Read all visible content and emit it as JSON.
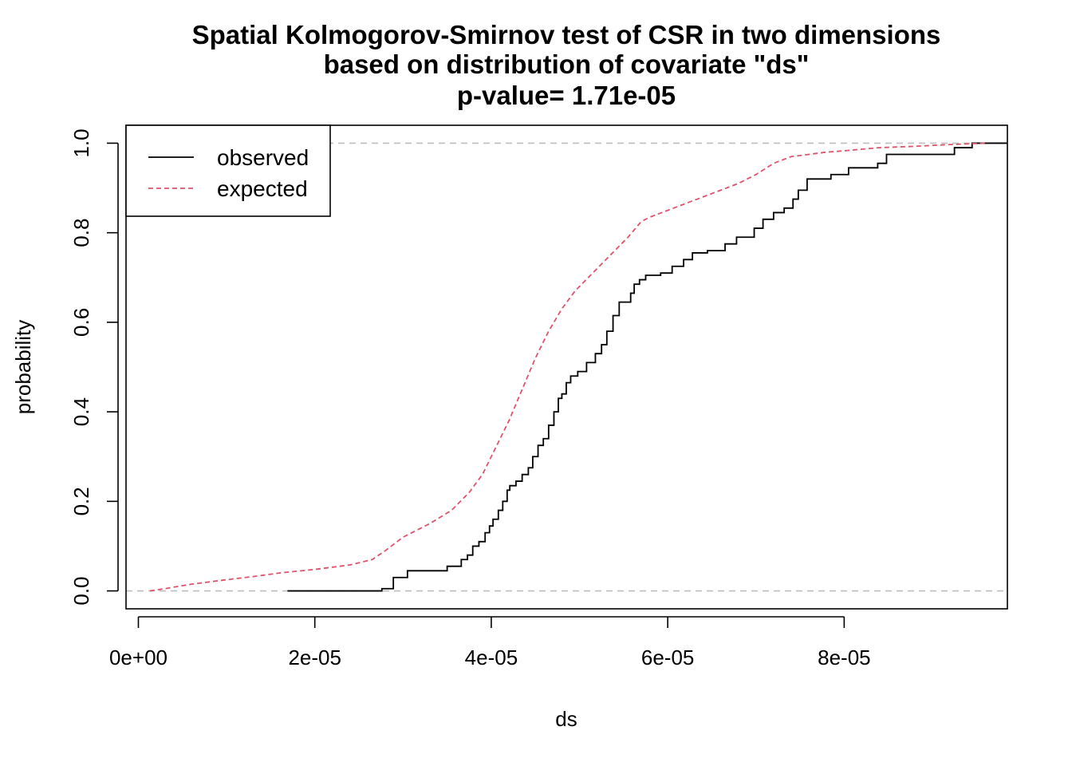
{
  "chart_data": {
    "type": "line",
    "title_lines": [
      "Spatial Kolmogorov-Smirnov test of CSR in two dimensions",
      "based on distribution of covariate \"ds\"",
      "p-value= 1.71e-05"
    ],
    "xlabel": "ds",
    "ylabel": "probability",
    "xlim": [
      -1.4e-06,
      9.85e-05
    ],
    "ylim": [
      -0.04,
      1.04
    ],
    "x_ticks": [
      0,
      2e-05,
      4e-05,
      6e-05,
      8e-05
    ],
    "x_tick_labels": [
      "0e+00",
      "2e-05",
      "4e-05",
      "6e-05",
      "8e-05"
    ],
    "y_ticks": [
      0,
      0.2,
      0.4,
      0.6,
      0.8,
      1.0
    ],
    "y_tick_labels": [
      "0.0",
      "0.2",
      "0.4",
      "0.6",
      "0.8",
      "1.0"
    ],
    "reference_lines": [
      0,
      1
    ],
    "legend": {
      "position": "top-left"
    },
    "series": [
      {
        "name": "observed",
        "style": "step",
        "color": "#000000",
        "x": [
          1.69e-05,
          2.76e-05,
          2.89e-05,
          3.05e-05,
          3.5e-05,
          3.66e-05,
          3.73e-05,
          3.79e-05,
          3.86e-05,
          3.93e-05,
          3.98e-05,
          4.02e-05,
          4.08e-05,
          4.13e-05,
          4.18e-05,
          4.21e-05,
          4.28e-05,
          4.35e-05,
          4.42e-05,
          4.47e-05,
          4.53e-05,
          4.59e-05,
          4.65e-05,
          4.71e-05,
          4.76e-05,
          4.8e-05,
          4.85e-05,
          4.9e-05,
          4.98e-05,
          5.08e-05,
          5.18e-05,
          5.25e-05,
          5.31e-05,
          5.38e-05,
          5.45e-05,
          5.58e-05,
          5.62e-05,
          5.68e-05,
          5.75e-05,
          5.92e-05,
          6.05e-05,
          6.18e-05,
          6.28e-05,
          6.45e-05,
          6.65e-05,
          6.78e-05,
          6.98e-05,
          7.08e-05,
          7.2e-05,
          7.32e-05,
          7.42e-05,
          7.48e-05,
          7.58e-05,
          7.85e-05,
          8.05e-05,
          8.38e-05,
          8.48e-05,
          9.25e-05,
          9.45e-05,
          9.85e-05
        ],
        "y": [
          0.0,
          0.005,
          0.03,
          0.045,
          0.055,
          0.07,
          0.08,
          0.1,
          0.11,
          0.13,
          0.145,
          0.16,
          0.18,
          0.2,
          0.225,
          0.235,
          0.245,
          0.26,
          0.275,
          0.3,
          0.325,
          0.34,
          0.37,
          0.4,
          0.43,
          0.44,
          0.465,
          0.48,
          0.49,
          0.51,
          0.53,
          0.55,
          0.58,
          0.615,
          0.645,
          0.665,
          0.685,
          0.695,
          0.705,
          0.71,
          0.725,
          0.74,
          0.755,
          0.76,
          0.775,
          0.79,
          0.81,
          0.83,
          0.845,
          0.855,
          0.875,
          0.895,
          0.92,
          0.93,
          0.945,
          0.955,
          0.975,
          0.99,
          1.0,
          1.0
        ]
      },
      {
        "name": "expected",
        "style": "dashed",
        "color": "#DF536B",
        "x": [
          1.3e-06,
          3e-06,
          6e-06,
          1e-05,
          1.3e-05,
          1.6e-05,
          2e-05,
          2.4e-05,
          2.65e-05,
          2.8e-05,
          3e-05,
          3.3e-05,
          3.55e-05,
          3.75e-05,
          3.9e-05,
          4.05e-05,
          4.2e-05,
          4.35e-05,
          4.5e-05,
          4.65e-05,
          4.8e-05,
          4.95e-05,
          5.15e-05,
          5.35e-05,
          5.55e-05,
          5.7e-05,
          5.8e-05,
          6e-05,
          6.4e-05,
          6.8e-05,
          7e-05,
          7.2e-05,
          7.4e-05,
          7.6e-05,
          7.8e-05,
          8e-05,
          8.4e-05,
          8.8e-05,
          9.2e-05,
          9.6e-05
        ],
        "y": [
          0.0,
          0.005,
          0.015,
          0.025,
          0.032,
          0.04,
          0.048,
          0.058,
          0.07,
          0.09,
          0.12,
          0.15,
          0.18,
          0.22,
          0.26,
          0.32,
          0.38,
          0.45,
          0.52,
          0.58,
          0.63,
          0.67,
          0.71,
          0.75,
          0.79,
          0.825,
          0.835,
          0.85,
          0.88,
          0.91,
          0.93,
          0.955,
          0.97,
          0.975,
          0.98,
          0.983,
          0.99,
          0.993,
          0.997,
          1.0
        ]
      }
    ]
  }
}
